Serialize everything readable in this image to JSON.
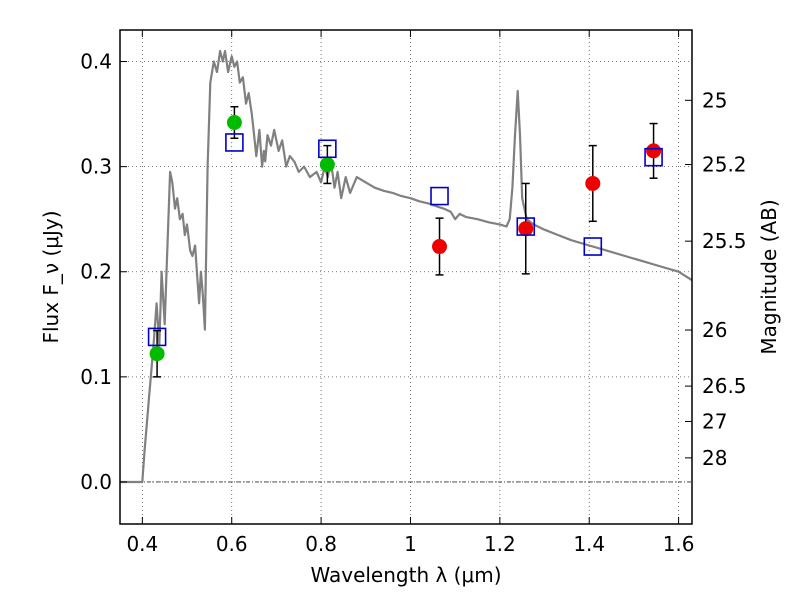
{
  "chart_data": {
    "type": "scatter",
    "xlabel": "Wavelength λ (μm)",
    "ylabel": "Flux F_ν (μJy)",
    "y2label": "Magnitude (AB)",
    "xlim": [
      0.35,
      1.63
    ],
    "ylim": [
      -0.04,
      0.43
    ],
    "grid": true,
    "x_ticks": [
      {
        "value": 0.4,
        "label": "0.4"
      },
      {
        "value": 0.6,
        "label": "0.6"
      },
      {
        "value": 0.8,
        "label": "0.8"
      },
      {
        "value": 1.0,
        "label": "1"
      },
      {
        "value": 1.2,
        "label": "1.2"
      },
      {
        "value": 1.4,
        "label": "1.4"
      },
      {
        "value": 1.6,
        "label": "1.6"
      }
    ],
    "y_ticks": [
      {
        "value": 0.0,
        "label": "0.0"
      },
      {
        "value": 0.1,
        "label": "0.1"
      },
      {
        "value": 0.2,
        "label": "0.2"
      },
      {
        "value": 0.3,
        "label": "0.3"
      },
      {
        "value": 0.4,
        "label": "0.4"
      }
    ],
    "mag_ticks": [
      {
        "value": 25,
        "label": "25"
      },
      {
        "value": 25.2,
        "label": "25.2"
      },
      {
        "value": 25.5,
        "label": "25.5"
      },
      {
        "value": 26,
        "label": "26"
      },
      {
        "value": 26.5,
        "label": "26.5"
      },
      {
        "value": 27,
        "label": "27"
      },
      {
        "value": 28,
        "label": "28"
      }
    ],
    "zero_line": 0.0,
    "series": [
      {
        "kind": "line",
        "color": "#808080",
        "points": [
          [
            0.35,
            0.0
          ],
          [
            0.4,
            0.0
          ],
          [
            0.405,
            0.03
          ],
          [
            0.415,
            0.08
          ],
          [
            0.425,
            0.13
          ],
          [
            0.432,
            0.17
          ],
          [
            0.438,
            0.13
          ],
          [
            0.443,
            0.2
          ],
          [
            0.45,
            0.15
          ],
          [
            0.455,
            0.21
          ],
          [
            0.462,
            0.295
          ],
          [
            0.467,
            0.285
          ],
          [
            0.473,
            0.26
          ],
          [
            0.478,
            0.27
          ],
          [
            0.484,
            0.25
          ],
          [
            0.49,
            0.255
          ],
          [
            0.495,
            0.235
          ],
          [
            0.5,
            0.245
          ],
          [
            0.507,
            0.22
          ],
          [
            0.512,
            0.215
          ],
          [
            0.518,
            0.225
          ],
          [
            0.522,
            0.2
          ],
          [
            0.527,
            0.17
          ],
          [
            0.531,
            0.2
          ],
          [
            0.535,
            0.18
          ],
          [
            0.54,
            0.145
          ],
          [
            0.546,
            0.3
          ],
          [
            0.552,
            0.38
          ],
          [
            0.56,
            0.4
          ],
          [
            0.567,
            0.39
          ],
          [
            0.574,
            0.41
          ],
          [
            0.58,
            0.4
          ],
          [
            0.585,
            0.41
          ],
          [
            0.592,
            0.39
          ],
          [
            0.6,
            0.405
          ],
          [
            0.606,
            0.395
          ],
          [
            0.612,
            0.4
          ],
          [
            0.618,
            0.38
          ],
          [
            0.625,
            0.385
          ],
          [
            0.632,
            0.36
          ],
          [
            0.638,
            0.37
          ],
          [
            0.645,
            0.35
          ],
          [
            0.65,
            0.33
          ],
          [
            0.655,
            0.31
          ],
          [
            0.662,
            0.335
          ],
          [
            0.668,
            0.3
          ],
          [
            0.672,
            0.315
          ],
          [
            0.675,
            0.305
          ],
          [
            0.68,
            0.33
          ],
          [
            0.688,
            0.32
          ],
          [
            0.695,
            0.335
          ],
          [
            0.705,
            0.315
          ],
          [
            0.713,
            0.325
          ],
          [
            0.722,
            0.3
          ],
          [
            0.73,
            0.31
          ],
          [
            0.74,
            0.305
          ],
          [
            0.75,
            0.295
          ],
          [
            0.762,
            0.3
          ],
          [
            0.775,
            0.29
          ],
          [
            0.79,
            0.295
          ],
          [
            0.8,
            0.285
          ],
          [
            0.808,
            0.3
          ],
          [
            0.815,
            0.29
          ],
          [
            0.822,
            0.305
          ],
          [
            0.83,
            0.28
          ],
          [
            0.837,
            0.295
          ],
          [
            0.845,
            0.27
          ],
          [
            0.855,
            0.29
          ],
          [
            0.865,
            0.275
          ],
          [
            0.88,
            0.29
          ],
          [
            0.9,
            0.285
          ],
          [
            0.92,
            0.28
          ],
          [
            0.94,
            0.277
          ],
          [
            0.96,
            0.275
          ],
          [
            0.98,
            0.272
          ],
          [
            1.0,
            0.27
          ],
          [
            1.02,
            0.267
          ],
          [
            1.04,
            0.265
          ],
          [
            1.06,
            0.262
          ],
          [
            1.075,
            0.26
          ],
          [
            1.09,
            0.257
          ],
          [
            1.1,
            0.25
          ],
          [
            1.11,
            0.255
          ],
          [
            1.125,
            0.252
          ],
          [
            1.15,
            0.25
          ],
          [
            1.175,
            0.247
          ],
          [
            1.2,
            0.245
          ],
          [
            1.215,
            0.243
          ],
          [
            1.222,
            0.25
          ],
          [
            1.228,
            0.28
          ],
          [
            1.234,
            0.33
          ],
          [
            1.24,
            0.372
          ],
          [
            1.245,
            0.33
          ],
          [
            1.25,
            0.27
          ],
          [
            1.26,
            0.25
          ],
          [
            1.275,
            0.245
          ],
          [
            1.3,
            0.24
          ],
          [
            1.33,
            0.235
          ],
          [
            1.36,
            0.23
          ],
          [
            1.4,
            0.225
          ],
          [
            1.44,
            0.22
          ],
          [
            1.48,
            0.215
          ],
          [
            1.52,
            0.21
          ],
          [
            1.56,
            0.205
          ],
          [
            1.6,
            0.2
          ],
          [
            1.63,
            0.192
          ]
        ]
      },
      {
        "kind": "points",
        "color": "#00bb00",
        "marker": "circle",
        "points": [
          {
            "x": 0.433,
            "y": 0.122,
            "err": 0.022
          },
          {
            "x": 0.606,
            "y": 0.342,
            "err": 0.015
          },
          {
            "x": 0.814,
            "y": 0.302,
            "err": 0.018
          }
        ]
      },
      {
        "kind": "points",
        "color": "#ee0000",
        "marker": "circle",
        "points": [
          {
            "x": 1.065,
            "y": 0.224,
            "err": 0.027
          },
          {
            "x": 1.258,
            "y": 0.241,
            "err": 0.043
          },
          {
            "x": 1.408,
            "y": 0.284,
            "err": 0.036
          },
          {
            "x": 1.544,
            "y": 0.315,
            "err": 0.026
          }
        ]
      },
      {
        "kind": "points",
        "color": "#0000cc",
        "marker": "square-open",
        "points": [
          {
            "x": 0.433,
            "y": 0.138
          },
          {
            "x": 0.606,
            "y": 0.323
          },
          {
            "x": 0.814,
            "y": 0.317
          },
          {
            "x": 1.065,
            "y": 0.272
          },
          {
            "x": 1.258,
            "y": 0.243
          },
          {
            "x": 1.408,
            "y": 0.224
          },
          {
            "x": 1.544,
            "y": 0.309
          }
        ]
      }
    ]
  }
}
